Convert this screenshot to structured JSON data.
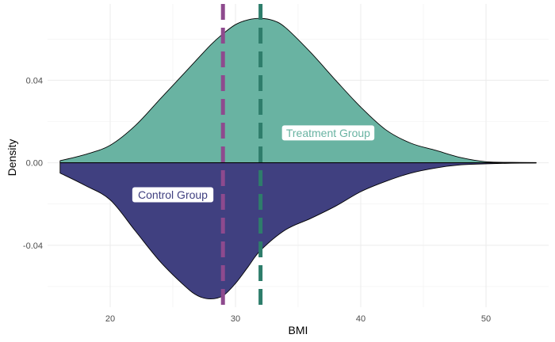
{
  "chart_data": {
    "type": "area",
    "subtype": "mirrored-density",
    "xlabel": "BMI",
    "ylabel": "Density",
    "xlim": [
      15,
      55
    ],
    "ylim": [
      -0.07,
      0.077
    ],
    "x_ticks": [
      20,
      30,
      40,
      50
    ],
    "y_ticks": [
      -0.04,
      0.0,
      0.04
    ],
    "y_tick_labels": [
      "-0.04",
      "0.00",
      "0.04"
    ],
    "grid": true,
    "legend": "none",
    "series": [
      {
        "name": "Treatment Group",
        "direction": "up",
        "color": "#69B3A2",
        "x": [
          16,
          18,
          20,
          22,
          24,
          26,
          28,
          29,
          30,
          31,
          32,
          33,
          34,
          36,
          38,
          40,
          42,
          44,
          46,
          48,
          50,
          52,
          54
        ],
        "y": [
          0.001,
          0.004,
          0.0085,
          0.018,
          0.031,
          0.044,
          0.057,
          0.0625,
          0.067,
          0.0693,
          0.07,
          0.069,
          0.0655,
          0.0535,
          0.04,
          0.027,
          0.016,
          0.0095,
          0.006,
          0.0025,
          0.0005,
          0.0002,
          0.0001
        ],
        "mean": 32
      },
      {
        "name": "Control Group",
        "direction": "down",
        "color": "#404080",
        "x": [
          16,
          18,
          20,
          22,
          24,
          26,
          27,
          28,
          29,
          30,
          31,
          32,
          34,
          36,
          38,
          40,
          42,
          44,
          46,
          48,
          50,
          52,
          54
        ],
        "y": [
          0.005,
          0.011,
          0.018,
          0.033,
          0.048,
          0.06,
          0.0645,
          0.066,
          0.0645,
          0.0585,
          0.0505,
          0.0425,
          0.0325,
          0.027,
          0.021,
          0.014,
          0.009,
          0.005,
          0.0025,
          0.001,
          0.0005,
          0.0002,
          0.0001
        ],
        "mean": 29
      }
    ],
    "annotations": [
      {
        "text": "Treatment Group",
        "x": 37.4,
        "y": 0.0145,
        "color": "#69B3A2"
      },
      {
        "text": "Control Group",
        "x": 25,
        "y": -0.0155,
        "color": "#404080"
      }
    ],
    "mean_line_colors": {
      "Treatment Group": "#2E7D6B",
      "Control Group": "#8E4A8E"
    }
  }
}
